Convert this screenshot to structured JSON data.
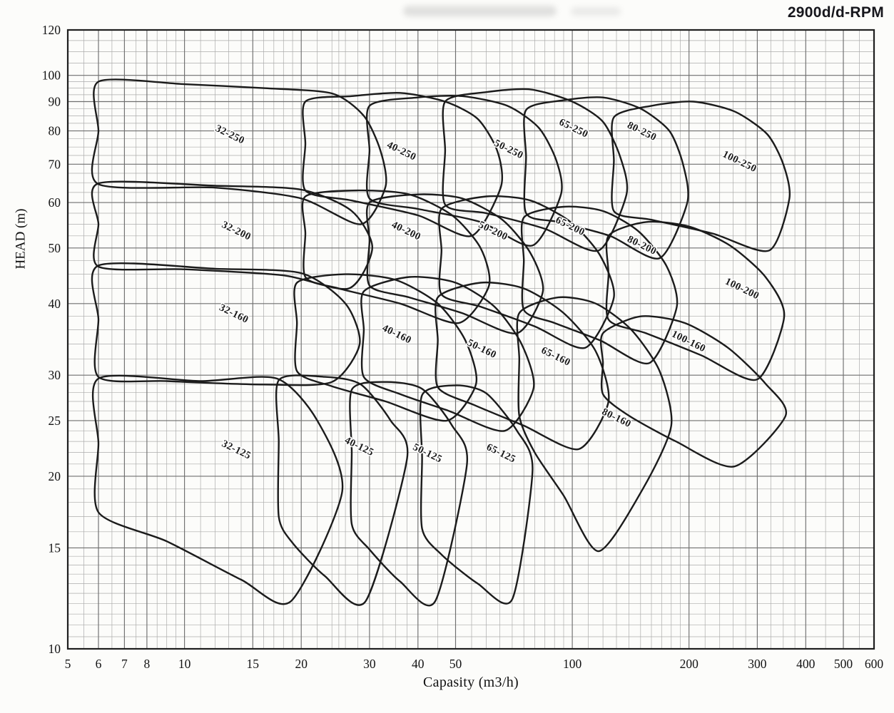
{
  "chart_data": {
    "type": "area",
    "title": "2900d/d-RPM",
    "xlabel": "Capasity (m3/h)",
    "ylabel": "HEAD (m)",
    "x_scale": "log",
    "y_scale": "log",
    "xlim": [
      5,
      600
    ],
    "ylim": [
      10,
      120
    ],
    "grid": true,
    "legend": "none",
    "x_ticks": [
      5,
      6,
      7,
      8,
      10,
      15,
      20,
      30,
      40,
      50,
      100,
      200,
      300,
      400,
      500,
      600
    ],
    "y_ticks": [
      10,
      15,
      20,
      25,
      30,
      40,
      50,
      60,
      70,
      80,
      90,
      100,
      120
    ],
    "x_minor": [
      5.5,
      6.5,
      7.5,
      8.5,
      9,
      9.5,
      11,
      12,
      13,
      14,
      16,
      17,
      18,
      19,
      22,
      24,
      25,
      26,
      28,
      32.5,
      35,
      37.5,
      45,
      55,
      60,
      65,
      70,
      75,
      80,
      85,
      90,
      95,
      110,
      120,
      130,
      140,
      150,
      160,
      170,
      180,
      190,
      220,
      240,
      260,
      280,
      325,
      350,
      375,
      450,
      550
    ],
    "y_minor": [
      10.5,
      11,
      11.5,
      12,
      12.5,
      13,
      13.5,
      14,
      14.5,
      16,
      17,
      18,
      19,
      21,
      22,
      23,
      24,
      26,
      27,
      28,
      29,
      32,
      34,
      36,
      38,
      42.5,
      45,
      47.5,
      52.5,
      55,
      57.5,
      62.5,
      65,
      67.5,
      72.5,
      75,
      77.5,
      82.5,
      85,
      87.5,
      92.5,
      95,
      97.5,
      105,
      110,
      115
    ],
    "colors": {
      "line": "#1b1b1b",
      "grid_minor": "#ababab",
      "grid_major": "#6f6f6f",
      "frame": "#1f1f1f",
      "text": "#141414"
    },
    "label_rotation_deg": 26,
    "envelopes": [
      {
        "label": "32-250",
        "label_at": [
          13,
          78
        ],
        "points": [
          [
            6,
            97.5
          ],
          [
            10,
            96.5
          ],
          [
            16,
            95
          ],
          [
            24,
            93
          ],
          [
            29,
            85
          ],
          [
            32,
            74
          ],
          [
            33,
            64
          ],
          [
            28.5,
            55
          ],
          [
            20,
            61
          ],
          [
            12,
            63.7
          ],
          [
            6,
            64.6
          ],
          [
            6,
            80
          ]
        ]
      },
      {
        "label": "32-200",
        "label_at": [
          13.5,
          53
        ],
        "points": [
          [
            6,
            64.8
          ],
          [
            12,
            64.2
          ],
          [
            20,
            63.2
          ],
          [
            27,
            58
          ],
          [
            30.5,
            50
          ],
          [
            26.5,
            42.5
          ],
          [
            18,
            44.8
          ],
          [
            10,
            45.9
          ],
          [
            6,
            46.4
          ],
          [
            6,
            55
          ]
        ]
      },
      {
        "label": "32-160",
        "label_at": [
          13.3,
          38
        ],
        "points": [
          [
            6,
            46.6
          ],
          [
            12,
            46
          ],
          [
            20,
            45.2
          ],
          [
            26,
            40
          ],
          [
            28.3,
            34
          ],
          [
            24,
            29.2
          ],
          [
            16,
            28.9
          ],
          [
            9,
            29.3
          ],
          [
            6,
            29.8
          ],
          [
            6,
            37.5
          ]
        ]
      },
      {
        "label": "32-125",
        "label_at": [
          13.5,
          22
        ],
        "points": [
          [
            6,
            29.6
          ],
          [
            11,
            29.3
          ],
          [
            17.3,
            29.6
          ],
          [
            22,
            25
          ],
          [
            25.5,
            18.8
          ],
          [
            18.8,
            12.1
          ],
          [
            14,
            13.2
          ],
          [
            9,
            15.4
          ],
          [
            6,
            17.3
          ],
          [
            6,
            22.8
          ]
        ]
      },
      {
        "label": "40-250",
        "label_at": [
          36,
          73
        ],
        "points": [
          [
            20.5,
            90
          ],
          [
            27,
            92
          ],
          [
            36,
            93.2
          ],
          [
            47,
            90
          ],
          [
            57,
            84
          ],
          [
            64,
            74
          ],
          [
            65.5,
            64
          ],
          [
            55,
            52.5
          ],
          [
            40,
            57
          ],
          [
            27,
            60.5
          ],
          [
            20.5,
            63
          ],
          [
            20.5,
            76
          ]
        ]
      },
      {
        "label": "40-200",
        "label_at": [
          37,
          53
        ],
        "points": [
          [
            20.5,
            61.5
          ],
          [
            28,
            63
          ],
          [
            38,
            62
          ],
          [
            49,
            57
          ],
          [
            58,
            50
          ],
          [
            61,
            43
          ],
          [
            51,
            37
          ],
          [
            36,
            40
          ],
          [
            25,
            42.5
          ],
          [
            20.5,
            44.5
          ],
          [
            20.5,
            53
          ]
        ]
      },
      {
        "label": "40-160",
        "label_at": [
          35,
          35
        ],
        "points": [
          [
            19.5,
            43.5
          ],
          [
            26,
            45
          ],
          [
            35,
            44
          ],
          [
            45,
            40
          ],
          [
            53,
            34.5
          ],
          [
            56.5,
            29
          ],
          [
            47.5,
            25
          ],
          [
            33,
            27
          ],
          [
            24,
            28.7
          ],
          [
            19.5,
            30.5
          ],
          [
            19.5,
            37
          ]
        ]
      },
      {
        "label": "40-125",
        "label_at": [
          28,
          22.3
        ],
        "points": [
          [
            17.5,
            29.4
          ],
          [
            23,
            29.8
          ],
          [
            28.5,
            28.9
          ],
          [
            34,
            25
          ],
          [
            37.5,
            21.5
          ],
          [
            29.3,
            12.1
          ],
          [
            23,
            13.4
          ],
          [
            19,
            15.3
          ],
          [
            17.5,
            17
          ],
          [
            17.5,
            23
          ]
        ]
      },
      {
        "label": "50-250",
        "label_at": [
          68,
          73.5
        ],
        "points": [
          [
            30,
            88.5
          ],
          [
            40,
            91.5
          ],
          [
            52,
            92
          ],
          [
            68,
            88.5
          ],
          [
            82,
            81
          ],
          [
            91,
            71
          ],
          [
            93.5,
            62
          ],
          [
            79,
            50.5
          ],
          [
            58,
            55.5
          ],
          [
            40,
            58.5
          ],
          [
            30,
            61
          ],
          [
            30,
            74
          ]
        ]
      },
      {
        "label": "50-200",
        "label_at": [
          62,
          53
        ],
        "points": [
          [
            30,
            60
          ],
          [
            40,
            62
          ],
          [
            52,
            61
          ],
          [
            66,
            56
          ],
          [
            78,
            49
          ],
          [
            84,
            42
          ],
          [
            72,
            35.5
          ],
          [
            52,
            38.5
          ],
          [
            38,
            41
          ],
          [
            30,
            43
          ],
          [
            30,
            51.5
          ]
        ]
      },
      {
        "label": "50-160",
        "label_at": [
          58,
          33
        ],
        "points": [
          [
            29,
            42
          ],
          [
            38,
            44.5
          ],
          [
            50,
            43.5
          ],
          [
            63,
            39.5
          ],
          [
            74,
            34
          ],
          [
            79.5,
            28.5
          ],
          [
            67,
            24
          ],
          [
            48,
            26
          ],
          [
            36,
            27.8
          ],
          [
            29,
            29.8
          ],
          [
            29,
            36
          ]
        ]
      },
      {
        "label": "50-125",
        "label_at": [
          42,
          21.7
        ],
        "points": [
          [
            27,
            28.3
          ],
          [
            33,
            29.2
          ],
          [
            41,
            28.4
          ],
          [
            49,
            24.5
          ],
          [
            53.5,
            21
          ],
          [
            44.3,
            12.1
          ],
          [
            36,
            13.1
          ],
          [
            30,
            14.9
          ],
          [
            27,
            16.5
          ],
          [
            27,
            22
          ]
        ]
      },
      {
        "label": "65-250",
        "label_at": [
          100,
          80
        ],
        "points": [
          [
            47,
            90
          ],
          [
            60,
            93.5
          ],
          [
            78,
            94.5
          ],
          [
            100,
            90
          ],
          [
            120,
            83
          ],
          [
            133,
            72
          ],
          [
            138,
            62
          ],
          [
            117,
            49.5
          ],
          [
            85,
            54
          ],
          [
            60,
            57.5
          ],
          [
            47,
            59.5
          ],
          [
            47,
            74
          ]
        ]
      },
      {
        "label": "65-200",
        "label_at": [
          98,
          54
        ],
        "points": [
          [
            46,
            58.5
          ],
          [
            60,
            61.5
          ],
          [
            78,
            60.5
          ],
          [
            99,
            55.5
          ],
          [
            118,
            48.5
          ],
          [
            128,
            41
          ],
          [
            108,
            33.5
          ],
          [
            80,
            36.5
          ],
          [
            58,
            39.5
          ],
          [
            46,
            41.5
          ],
          [
            46,
            49.5
          ]
        ]
      },
      {
        "label": "65-160",
        "label_at": [
          90,
          32
        ],
        "points": [
          [
            45,
            41
          ],
          [
            58,
            43.5
          ],
          [
            75,
            42.5
          ],
          [
            95,
            38.5
          ],
          [
            115,
            33
          ],
          [
            124,
            27
          ],
          [
            104,
            22.3
          ],
          [
            75,
            24.5
          ],
          [
            56,
            26.6
          ],
          [
            45,
            28.6
          ],
          [
            45,
            34.5
          ]
        ]
      },
      {
        "label": "65-125",
        "label_at": [
          65,
          21.7
        ],
        "points": [
          [
            41,
            27.7
          ],
          [
            50,
            28.8
          ],
          [
            60,
            27.9
          ],
          [
            72,
            24
          ],
          [
            79,
            20.5
          ],
          [
            70,
            12.2
          ],
          [
            57,
            13
          ],
          [
            46,
            14.6
          ],
          [
            41,
            16.2
          ],
          [
            41,
            21.5
          ]
        ]
      },
      {
        "label": "80-250",
        "label_at": [
          150,
          79
        ],
        "points": [
          [
            76,
            87
          ],
          [
            95,
            90.5
          ],
          [
            120,
            91.5
          ],
          [
            150,
            87.5
          ],
          [
            178,
            80
          ],
          [
            193,
            70
          ],
          [
            198,
            60
          ],
          [
            168,
            48
          ],
          [
            125,
            52.5
          ],
          [
            92,
            55.5
          ],
          [
            76,
            57.5
          ],
          [
            76,
            72
          ]
        ]
      },
      {
        "label": "80-200",
        "label_at": [
          150,
          50
        ],
        "points": [
          [
            75,
            56.5
          ],
          [
            95,
            59
          ],
          [
            120,
            58
          ],
          [
            148,
            53.5
          ],
          [
            175,
            46.5
          ],
          [
            186,
            39.5
          ],
          [
            158,
            31.5
          ],
          [
            118,
            34.5
          ],
          [
            90,
            37
          ],
          [
            75,
            39
          ],
          [
            75,
            47.5
          ]
        ]
      },
      {
        "label": "80-160",
        "label_at": [
          129,
          25
        ],
        "points": [
          [
            73,
            38.5
          ],
          [
            92,
            41
          ],
          [
            115,
            40
          ],
          [
            142,
            36
          ],
          [
            168,
            30.5
          ],
          [
            180,
            24.5
          ],
          [
            152,
            19
          ],
          [
            117,
            14.8
          ],
          [
            95,
            18.5
          ],
          [
            80,
            22
          ],
          [
            73,
            25.5
          ],
          [
            73,
            32
          ]
        ]
      },
      {
        "label": "100-250",
        "label_at": [
          268,
          70
        ],
        "points": [
          [
            128,
            84.5
          ],
          [
            160,
            88.5
          ],
          [
            205,
            90
          ],
          [
            262,
            86.5
          ],
          [
            318,
            79
          ],
          [
            350,
            70
          ],
          [
            363,
            61
          ],
          [
            322,
            49.5
          ],
          [
            230,
            53
          ],
          [
            160,
            56
          ],
          [
            128,
            58
          ],
          [
            128,
            71
          ]
        ]
      },
      {
        "label": "100-200",
        "label_at": [
          272,
          42
        ],
        "points": [
          [
            124,
            52.5
          ],
          [
            155,
            55.5
          ],
          [
            200,
            54.5
          ],
          [
            255,
            50.5
          ],
          [
            315,
            44.5
          ],
          [
            352,
            38
          ],
          [
            300,
            29.5
          ],
          [
            215,
            32.5
          ],
          [
            155,
            35.5
          ],
          [
            124,
            37.5
          ],
          [
            124,
            45
          ]
        ]
      },
      {
        "label": "100-160",
        "label_at": [
          198,
          34
        ],
        "points": [
          [
            120,
            35.5
          ],
          [
            150,
            38
          ],
          [
            195,
            37
          ],
          [
            252,
            33.5
          ],
          [
            315,
            29
          ],
          [
            355,
            25.5
          ],
          [
            262,
            20.8
          ],
          [
            185,
            23
          ],
          [
            140,
            25.5
          ],
          [
            120,
            27.8
          ],
          [
            120,
            31.5
          ]
        ]
      }
    ]
  }
}
